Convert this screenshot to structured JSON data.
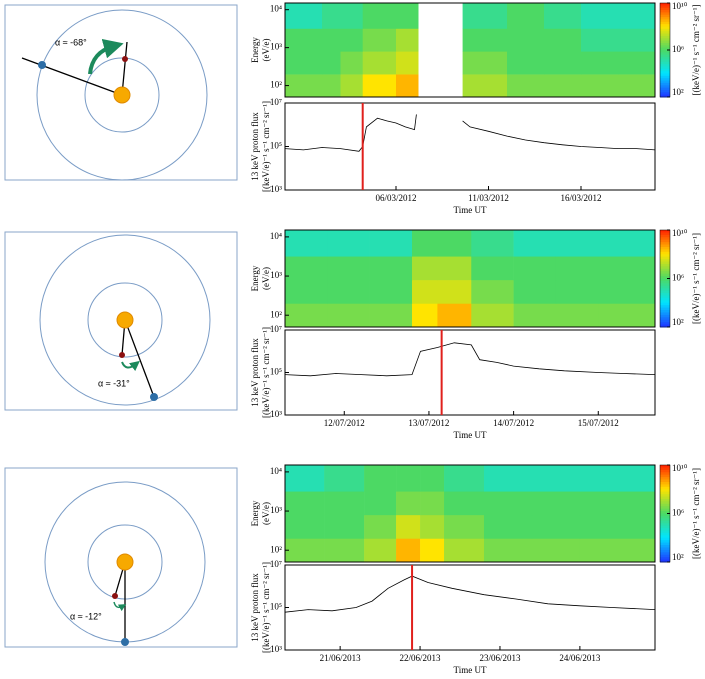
{
  "diagrams": [
    {
      "label": "α ≈ -68°"
    },
    {
      "label": "α ≈ -31°"
    },
    {
      "label": "α ≈ -12°"
    }
  ],
  "chart_data": [
    {
      "type": "heatmap",
      "ylabel": [
        "Energy",
        "(eV/e)"
      ],
      "xlim": [
        0,
        20
      ],
      "ylim": [
        50,
        15000
      ],
      "log_y": true,
      "yticks": [
        {
          "value": 100,
          "label": "10²"
        },
        {
          "value": 1000,
          "label": "10³"
        },
        {
          "value": 10000,
          "label": "10⁴"
        }
      ],
      "time_bins": [
        0,
        2,
        3,
        4.2,
        5,
        6,
        7.2,
        9.6,
        12,
        14,
        16,
        18,
        20
      ],
      "energy_bins": [
        50,
        200,
        800,
        3200,
        15000
      ],
      "values": [
        [
          3000000.0,
          3000000.0,
          10000000.0,
          100000000.0,
          100000000.0,
          300000000.0,
          null,
          10000000.0,
          3000000.0,
          3000000.0,
          3000000.0,
          3000000.0
        ],
        [
          1000000.0,
          1000000.0,
          3000000.0,
          10000000.0,
          10000000.0,
          30000000.0,
          null,
          3000000.0,
          1000000.0,
          1000000.0,
          1000000.0,
          1000000.0
        ],
        [
          1000000.0,
          1000000.0,
          1000000.0,
          3000000.0,
          3000000.0,
          10000000.0,
          null,
          1000000.0,
          1000000.0,
          1000000.0,
          300000.0,
          300000.0
        ],
        [
          100000.0,
          300000.0,
          300000.0,
          1000000.0,
          1000000.0,
          1000000.0,
          null,
          300000.0,
          1000000.0,
          300000.0,
          100000.0,
          100000.0
        ]
      ],
      "colorbar": {
        "lim": [
          100,
          10000000000.0
        ],
        "ticks": [
          {
            "value": 100,
            "label": "10²"
          },
          {
            "value": 1000000,
            "label": "10⁶"
          },
          {
            "value": 10000000000.0,
            "label": "10¹⁰"
          }
        ],
        "label": "[(keV/e)⁻¹ s⁻¹ cm⁻² sr⁻¹]",
        "colormap": [
          "#1e32ff",
          "#00e5ff",
          "#4cd964",
          "#ffe400",
          "#ff1e00"
        ]
      }
    },
    {
      "type": "line",
      "ylabel": [
        "13 keV proton flux",
        "[(keV/e)⁻¹ s⁻¹ cm⁻² sr⁻¹]"
      ],
      "xlabel": "Time UT",
      "xlim": [
        0,
        20
      ],
      "xticks": [
        {
          "value": 6,
          "label": "06/03/2012"
        },
        {
          "value": 11,
          "label": "11/03/2012"
        },
        {
          "value": 16,
          "label": "16/03/2012"
        }
      ],
      "ylim": [
        1000,
        10000000
      ],
      "log_y": true,
      "yticks": [
        {
          "value": 1000,
          "label": "10³"
        },
        {
          "value": 100000,
          "label": "10⁵"
        },
        {
          "value": 10000000,
          "label": "10⁷"
        }
      ],
      "x": [
        0,
        1,
        2,
        3,
        4,
        4.2,
        4.4,
        5,
        5.5,
        6,
        6.5,
        7,
        7.1,
        8.4,
        9.6,
        10,
        11,
        12,
        13,
        14,
        15,
        16,
        17,
        18,
        19,
        20
      ],
      "values": [
        80000,
        70000,
        90000,
        80000,
        60000,
        100000,
        800000,
        2000000,
        1500000,
        1200000,
        800000,
        600000,
        3000000,
        null,
        1500000,
        800000,
        500000,
        300000,
        200000,
        150000,
        120000,
        100000,
        90000,
        80000,
        80000,
        70000
      ],
      "color": "#000000",
      "event_x": 4.2,
      "event_color": "#e0201c"
    },
    {
      "type": "heatmap",
      "ylabel": [
        "Energy",
        "(eV/e)"
      ],
      "xlim": [
        11.3,
        15.67
      ],
      "ylim": [
        50,
        15000
      ],
      "log_y": true,
      "yticks": [
        {
          "value": 100,
          "label": "10²"
        },
        {
          "value": 1000,
          "label": "10³"
        },
        {
          "value": 10000,
          "label": "10⁴"
        }
      ],
      "time_bins": [
        11.3,
        11.8,
        12.3,
        12.8,
        13.1,
        13.5,
        14,
        14.5,
        15,
        15.67
      ],
      "energy_bins": [
        50,
        200,
        800,
        3200,
        15000
      ],
      "values": [
        [
          3000000.0,
          3000000.0,
          3000000.0,
          100000000.0,
          300000000.0,
          10000000.0,
          3000000.0,
          3000000.0,
          3000000.0
        ],
        [
          1000000.0,
          1000000.0,
          1000000.0,
          30000000.0,
          30000000.0,
          3000000.0,
          1000000.0,
          1000000.0,
          1000000.0
        ],
        [
          1000000.0,
          1000000.0,
          1000000.0,
          10000000.0,
          10000000.0,
          1000000.0,
          1000000.0,
          1000000.0,
          1000000.0
        ],
        [
          100000.0,
          100000.0,
          100000.0,
          1000000.0,
          1000000.0,
          300000.0,
          100000.0,
          100000.0,
          100000.0
        ]
      ],
      "colorbar": {
        "lim": [
          100,
          10000000000.0
        ],
        "ticks": [
          {
            "value": 100,
            "label": "10²"
          },
          {
            "value": 1000000,
            "label": "10⁶"
          },
          {
            "value": 10000000000.0,
            "label": "10¹⁰"
          }
        ],
        "label": "[(keV/e)⁻¹ s⁻¹ cm⁻² sr⁻¹]",
        "colormap": [
          "#1e32ff",
          "#00e5ff",
          "#4cd964",
          "#ffe400",
          "#ff1e00"
        ]
      }
    },
    {
      "type": "line",
      "ylabel": [
        "13 keV proton flux",
        "[(keV/e)⁻¹ s⁻¹ cm⁻² sr⁻¹]"
      ],
      "xlabel": "Time UT",
      "xlim": [
        11.3,
        15.67
      ],
      "xticks": [
        {
          "value": 12,
          "label": "12/07/2012"
        },
        {
          "value": 13,
          "label": "13/07/2012"
        },
        {
          "value": 14,
          "label": "14/07/2012"
        },
        {
          "value": 15,
          "label": "15/07/2012"
        }
      ],
      "ylim": [
        1000,
        10000000
      ],
      "log_y": true,
      "yticks": [
        {
          "value": 1000,
          "label": "10³"
        },
        {
          "value": 100000,
          "label": "10⁵"
        },
        {
          "value": 10000000,
          "label": "10⁷"
        }
      ],
      "x": [
        11.3,
        11.6,
        11.9,
        12.2,
        12.5,
        12.8,
        12.9,
        13.1,
        13.3,
        13.5,
        13.6,
        13.8,
        14,
        14.3,
        14.6,
        15,
        15.3,
        15.67
      ],
      "values": [
        80000,
        70000,
        90000,
        80000,
        70000,
        80000,
        1000000,
        1500000,
        2500000,
        2000000,
        400000,
        300000,
        200000,
        150000,
        120000,
        100000,
        90000,
        80000
      ],
      "color": "#000000",
      "event_x": 13.15,
      "event_color": "#e0201c"
    },
    {
      "type": "heatmap",
      "ylabel": [
        "Energy",
        "(eV/e)"
      ],
      "xlim": [
        20.31,
        24.94
      ],
      "ylim": [
        50,
        15000
      ],
      "log_y": true,
      "yticks": [
        {
          "value": 100,
          "label": "10²"
        },
        {
          "value": 1000,
          "label": "10³"
        },
        {
          "value": 10000,
          "label": "10⁴"
        }
      ],
      "time_bins": [
        20.31,
        20.8,
        21.3,
        21.7,
        22.0,
        22.3,
        22.8,
        23.4,
        24,
        24.94
      ],
      "energy_bins": [
        50,
        200,
        800,
        3200,
        15000
      ],
      "values": [
        [
          3000000.0,
          3000000.0,
          10000000.0,
          300000000.0,
          100000000.0,
          10000000.0,
          3000000.0,
          3000000.0,
          3000000.0
        ],
        [
          1000000.0,
          1000000.0,
          3000000.0,
          30000000.0,
          10000000.0,
          3000000.0,
          1000000.0,
          1000000.0,
          1000000.0
        ],
        [
          1000000.0,
          1000000.0,
          1000000.0,
          3000000.0,
          3000000.0,
          1000000.0,
          1000000.0,
          1000000.0,
          1000000.0
        ],
        [
          100000.0,
          300000.0,
          1000000.0,
          1000000.0,
          1000000.0,
          300000.0,
          100000.0,
          100000.0,
          100000.0
        ]
      ],
      "colorbar": {
        "lim": [
          100,
          10000000000.0
        ],
        "ticks": [
          {
            "value": 100,
            "label": "10²"
          },
          {
            "value": 1000000,
            "label": "10⁶"
          },
          {
            "value": 10000000000.0,
            "label": "10¹⁰"
          }
        ],
        "label": "[(keV/e)⁻¹ s⁻¹ cm⁻² sr⁻¹]",
        "colormap": [
          "#1e32ff",
          "#00e5ff",
          "#4cd964",
          "#ffe400",
          "#ff1e00"
        ]
      }
    },
    {
      "type": "line",
      "ylabel": [
        "13 keV proton flux",
        "[(keV/e)⁻¹ s⁻¹ cm⁻² sr⁻¹]"
      ],
      "xlabel": "Time UT",
      "xlim": [
        20.31,
        24.94
      ],
      "xticks": [
        {
          "value": 21,
          "label": "21/06/2013"
        },
        {
          "value": 22,
          "label": "22/06/2013"
        },
        {
          "value": 23,
          "label": "23/06/2013"
        },
        {
          "value": 24,
          "label": "24/06/2013"
        }
      ],
      "ylim": [
        1000,
        10000000
      ],
      "log_y": true,
      "yticks": [
        {
          "value": 1000,
          "label": "10³"
        },
        {
          "value": 100000,
          "label": "10⁵"
        },
        {
          "value": 10000000,
          "label": "10⁷"
        }
      ],
      "x": [
        20.31,
        20.6,
        20.9,
        21.2,
        21.4,
        21.6,
        21.8,
        21.9,
        22.1,
        22.4,
        22.8,
        23.2,
        23.6,
        24,
        24.4,
        24.94
      ],
      "values": [
        60000,
        80000,
        70000,
        100000,
        200000,
        800000,
        2000000,
        3000000,
        1500000,
        800000,
        400000,
        250000,
        150000,
        120000,
        100000,
        80000
      ],
      "color": "#000000",
      "event_x": 21.9,
      "event_color": "#e0201c"
    }
  ]
}
